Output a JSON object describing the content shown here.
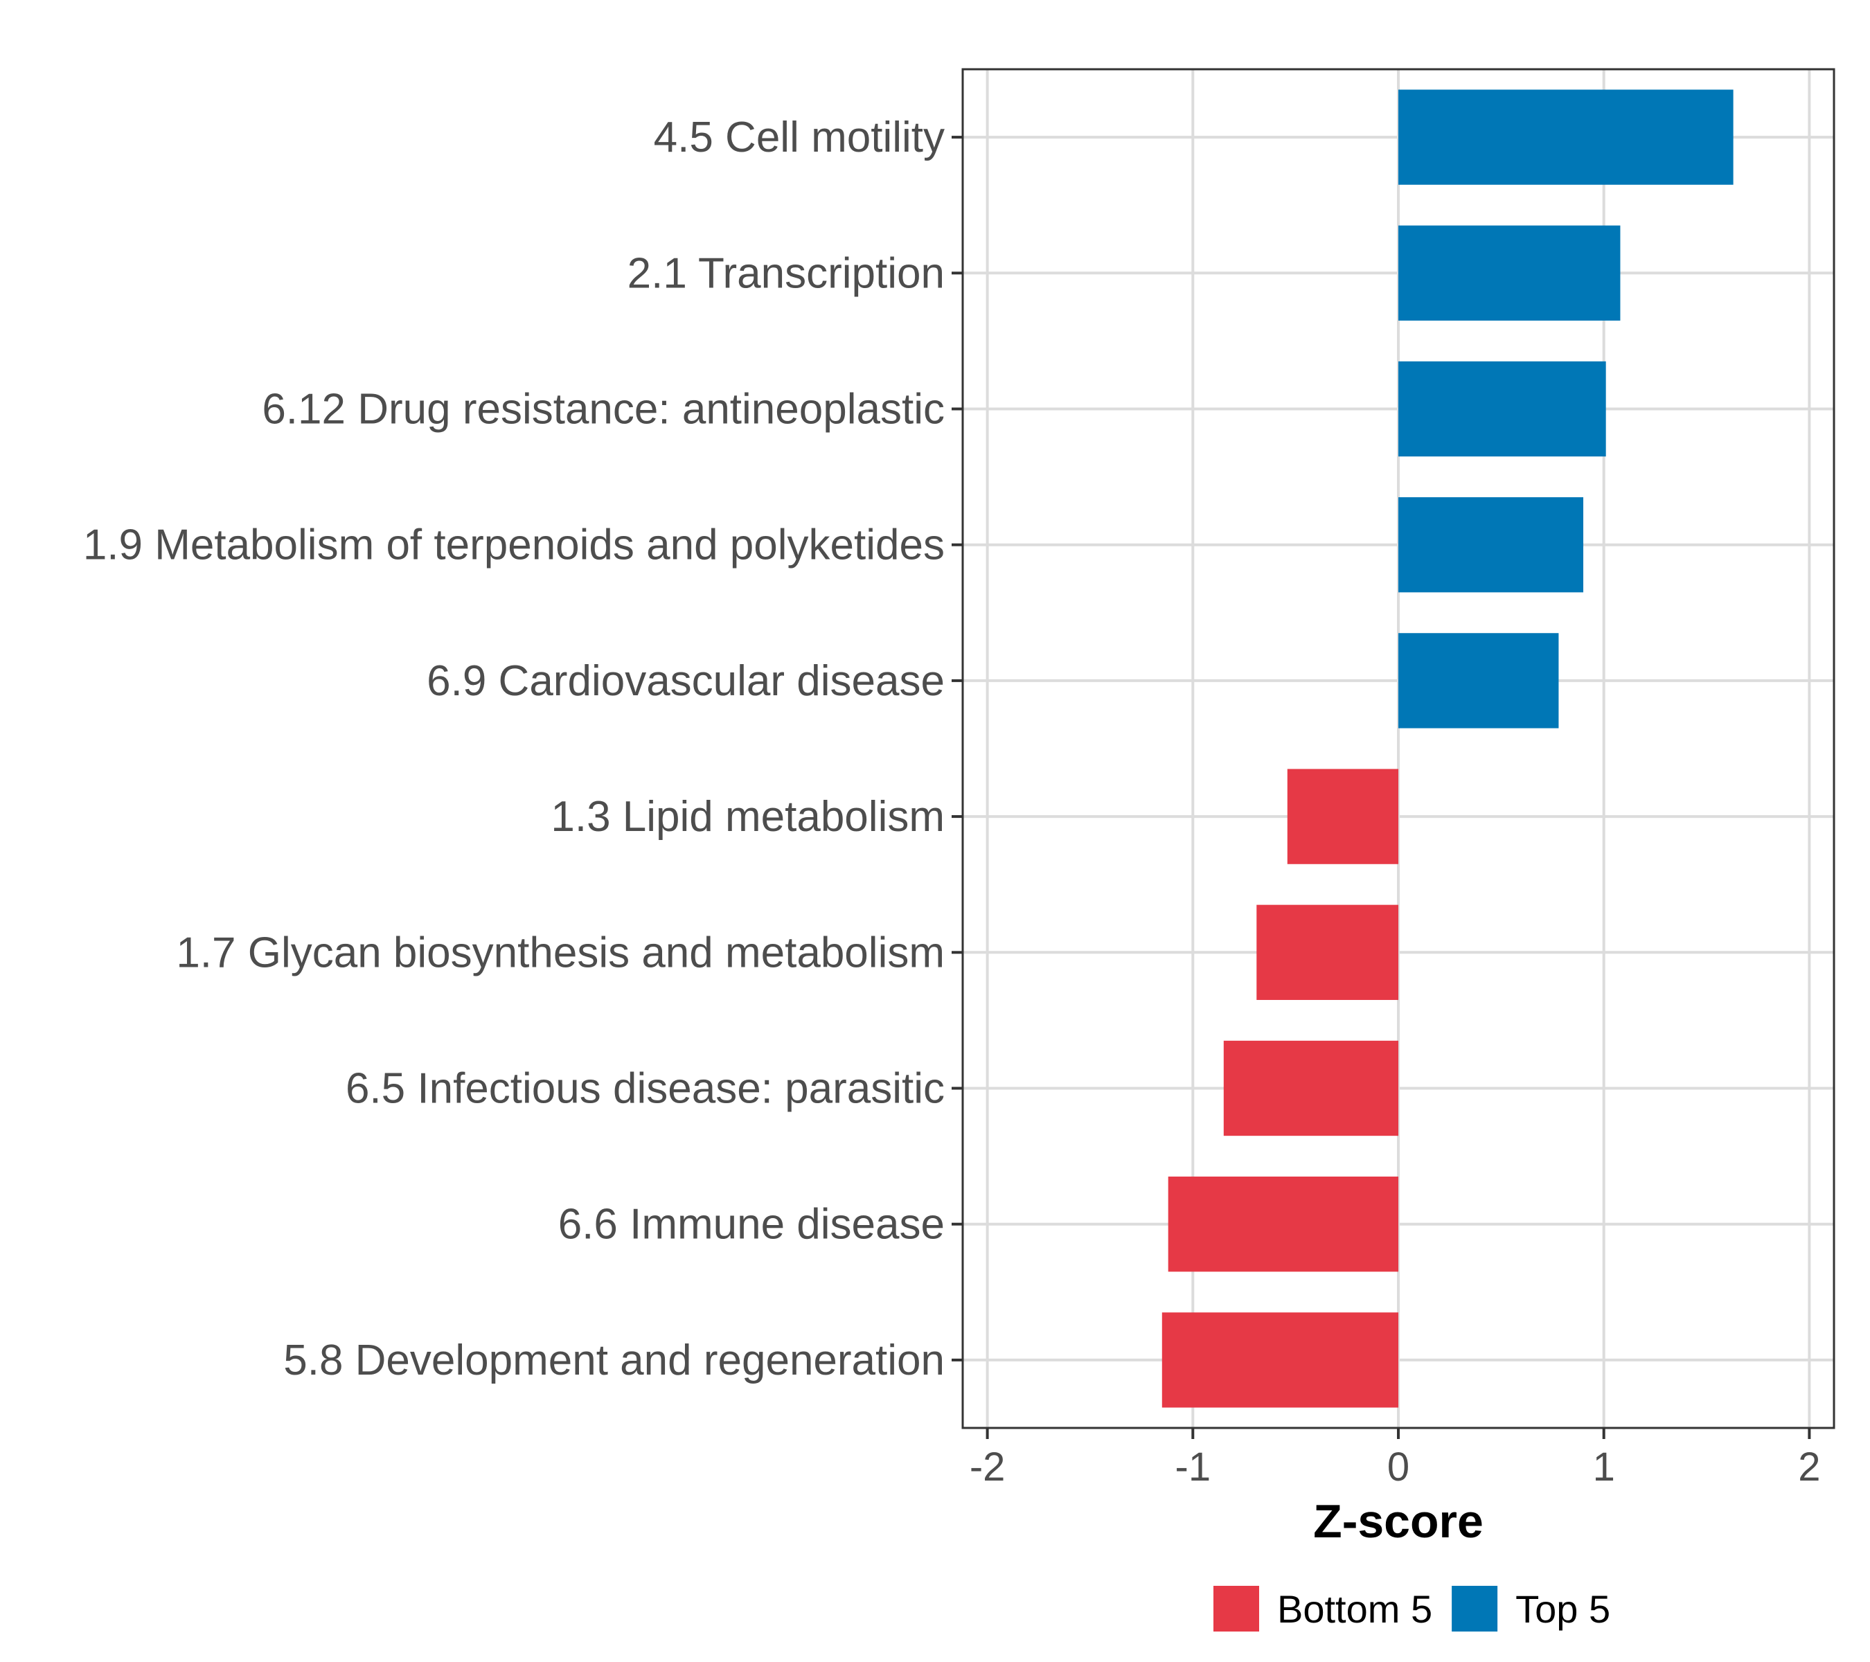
{
  "chart_data": {
    "type": "bar",
    "orientation": "horizontal",
    "title": "",
    "xlabel": "Z-score",
    "ylabel": "",
    "xlim": [
      -2.12,
      2.12
    ],
    "xticks": [
      -2,
      -1,
      0,
      1,
      2
    ],
    "xtick_labels": [
      "-2",
      "-1",
      "0",
      "1",
      "2"
    ],
    "grid": true,
    "legend_position": "bottom",
    "categories": [
      "4.5 Cell motility",
      "2.1 Transcription",
      "6.12 Drug resistance: antineoplastic",
      "1.9 Metabolism of terpenoids and polyketides",
      "6.9 Cardiovascular disease",
      "1.3 Lipid metabolism",
      "1.7 Glycan biosynthesis and metabolism",
      "6.5 Infectious disease: parasitic",
      "6.6 Immune disease",
      "5.8 Development and regeneration"
    ],
    "values": [
      1.63,
      1.08,
      1.01,
      0.9,
      0.78,
      -0.54,
      -0.69,
      -0.85,
      -1.12,
      -1.15
    ],
    "groups": [
      "Top 5",
      "Top 5",
      "Top 5",
      "Top 5",
      "Top 5",
      "Bottom 5",
      "Bottom 5",
      "Bottom 5",
      "Bottom 5",
      "Bottom 5"
    ],
    "legend": [
      {
        "name": "Bottom 5",
        "color": "#e63946"
      },
      {
        "name": "Top 5",
        "color": "#0077b6"
      }
    ]
  }
}
